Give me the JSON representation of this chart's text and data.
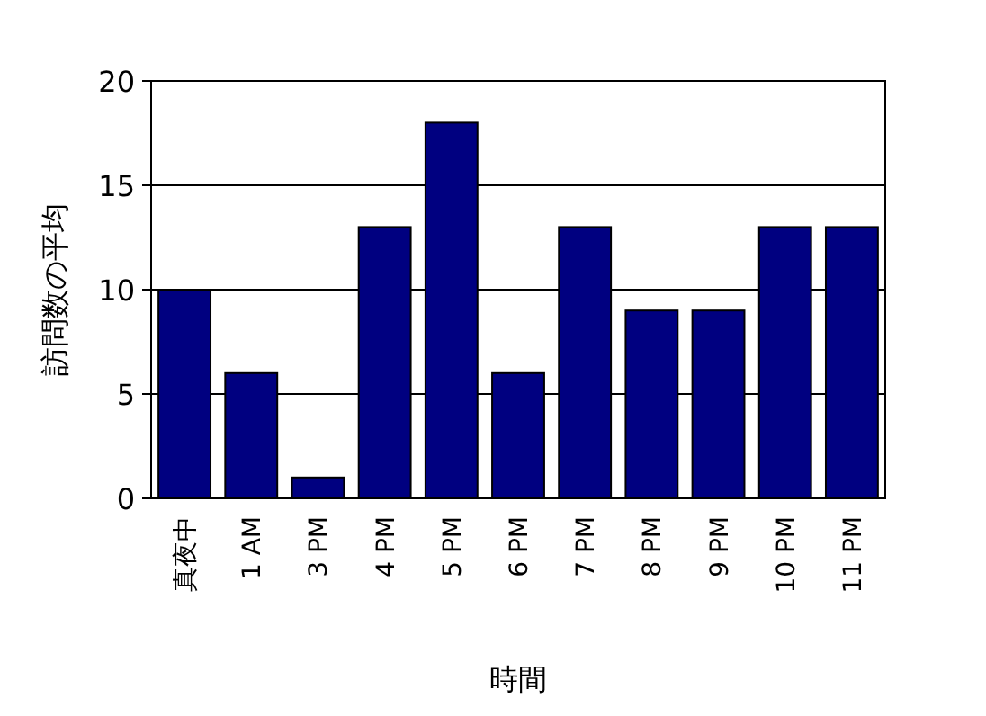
{
  "chart_data": {
    "type": "bar",
    "xlabel": "時間",
    "ylabel": "訪問数の平均",
    "categories": [
      "真夜中",
      "1 AM",
      "3 PM",
      "4 PM",
      "5 PM",
      "6 PM",
      "7 PM",
      "8 PM",
      "9 PM",
      "10 PM",
      "11 PM"
    ],
    "values": [
      10,
      6,
      1,
      13,
      18,
      6,
      13,
      9,
      9,
      13,
      13
    ],
    "color": "#000080",
    "ylim": [
      0,
      20
    ],
    "yticks": [
      0,
      5,
      10,
      15,
      20
    ],
    "grid": "y"
  }
}
